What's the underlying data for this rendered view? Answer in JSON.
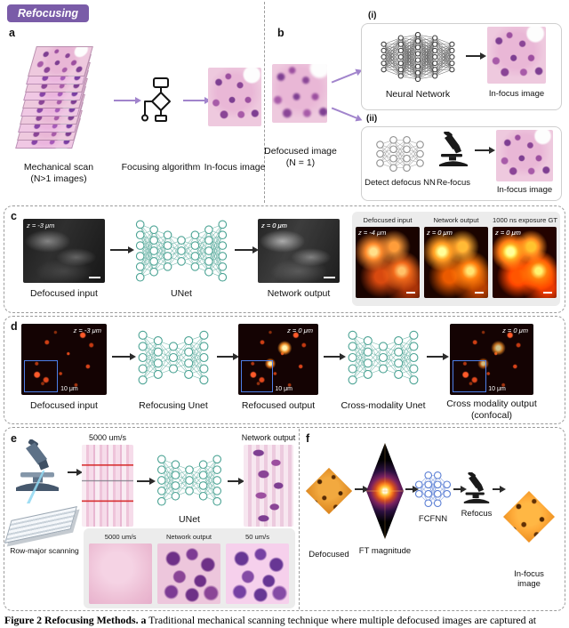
{
  "colors": {
    "badge_purple": "#7a5ca8",
    "arrow_purple": "#a184cc",
    "arrow_dark": "#2b2b2b",
    "teal": "#4ba394",
    "fcfnn_blue": "#5b7fd4",
    "nn_dark": "#3f3f3f",
    "nn_gray": "#909090"
  },
  "badge": {
    "label": "Refocusing"
  },
  "panels": {
    "a": {
      "letter": "a",
      "stack_caption_line1": "Mechanical scan",
      "stack_caption_line2": "(N>1 images)",
      "algorithm_caption": "Focusing algorithm",
      "output_caption": "In-focus image"
    },
    "b": {
      "letter": "b",
      "input_caption_line1": "Defocused image",
      "input_caption_line2": "(N = 1)",
      "path_i": {
        "tag": "(i)",
        "nn_caption": "Neural Network",
        "output_caption": "In-focus image"
      },
      "path_ii": {
        "tag": "(ii)",
        "nn_caption": "Detect defocus NN",
        "refocus_caption": "Re-focus",
        "output_caption": "In-focus image"
      }
    },
    "c": {
      "letter": "c",
      "input_z": "z = -3 μm",
      "input_caption": "Defocused input",
      "net_caption": "UNet",
      "output_z": "z = 0 μm",
      "output_caption": "Network output",
      "inset": {
        "col1_title": "Defocused input",
        "col1_z": "z = -4 μm",
        "col2_title": "Network output",
        "col2_z": "z = 0 μm",
        "col3_title": "1000 ns exposure GT",
        "col3_z": "z = 0 μm"
      }
    },
    "d": {
      "letter": "d",
      "img1_z": "z = -3 μm",
      "img1_scale": "10 μm",
      "img1_caption": "Defocused input",
      "net1_caption": "Refocusing Unet",
      "img2_z": "z = 0 μm",
      "img2_scale": "10 μm",
      "img2_caption": "Refocused output",
      "net2_caption": "Cross-modality Unet",
      "img3_z": "z = 0 μm",
      "img3_scale": "10 μm",
      "img3_caption_line1": "Cross modality output",
      "img3_caption_line2": "(confocal)"
    },
    "e": {
      "letter": "e",
      "fast_title": "5000 um/s",
      "output_title": "Network output",
      "net_caption": "UNet",
      "scan_caption": "Row-major scanning",
      "inset": {
        "col1_title": "5000 um/s",
        "col2_title": "Network output",
        "col3_title": "50 um/s"
      }
    },
    "f": {
      "letter": "f",
      "step1_caption_line1": "Defocused",
      "step1_caption_line2": "image",
      "step2_caption": "FT magnitude",
      "step3_caption": "FCFNN",
      "step4_caption": "Refocus",
      "step5_caption_line1": "In-focus",
      "step5_caption_line2": "image"
    }
  },
  "caption": {
    "figure_label": "Figure 2 Refocusing Methods.",
    "sub_label": "a",
    "text": "Traditional mechanical scanning technique where multiple defocused images are captured at"
  }
}
